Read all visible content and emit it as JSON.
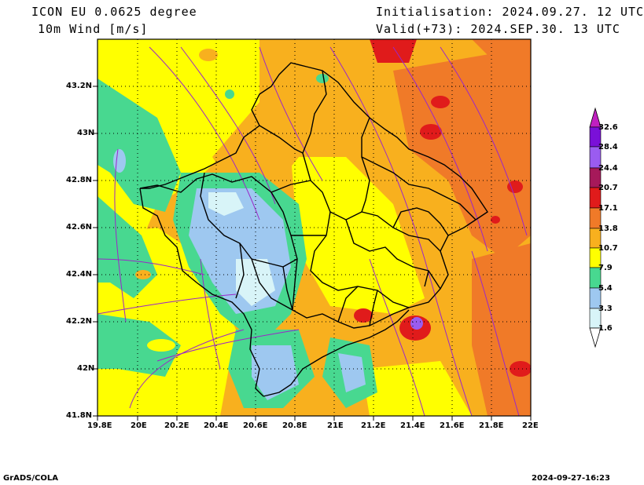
{
  "header": {
    "model": "ICON EU 0.0625 degree",
    "variable": "10m Wind [m/s]",
    "init": "Initialisation: 2024.09.27. 12 UTC",
    "valid": "Valid(+73): 2024.SEP.30. 13 UTC"
  },
  "axes": {
    "x_ticks": [
      "19.8E",
      "20E",
      "20.2E",
      "20.4E",
      "20.6E",
      "20.8E",
      "21E",
      "21.2E",
      "21.4E",
      "21.6E",
      "21.8E",
      "22E"
    ],
    "y_ticks": [
      "43.2N",
      "43N",
      "42.8N",
      "42.6N",
      "42.4N",
      "42.2N",
      "42N",
      "41.8N"
    ],
    "x_range": [
      19.8,
      22.0
    ],
    "y_range": [
      41.8,
      43.4
    ]
  },
  "legend": {
    "levels": [
      "32.6",
      "28.4",
      "24.4",
      "20.7",
      "17.1",
      "13.8",
      "10.7",
      "7.9",
      "5.4",
      "3.3",
      "1.6"
    ],
    "colors": [
      "#7a10d8",
      "#9a5cf0",
      "#a6195a",
      "#e01b1b",
      "#f07a28",
      "#f8b01e",
      "#ffff00",
      "#48d890",
      "#9ec8f0",
      "#d8f4f8"
    ],
    "top_arrow_color": "#c020c0"
  },
  "colors": {
    "border": "#000000",
    "streamline": "#9b27c8",
    "grid": "#000000"
  },
  "footer": {
    "left": "GrADS/COLA",
    "right": "2024-09-27-16:23"
  }
}
